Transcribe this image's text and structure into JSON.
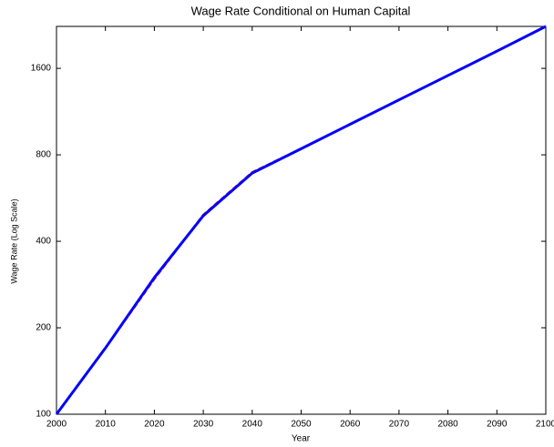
{
  "chart_data": {
    "type": "line",
    "title": "Wage Rate Conditional on Human Capital",
    "x_label": "Year",
    "y_label": "Wage Rate (Log Scale)",
    "x": [
      2000,
      2010,
      2020,
      2030,
      2040,
      2050,
      2060,
      2070,
      2080,
      2090,
      2100
    ],
    "series": [
      {
        "color": "#ff0000",
        "dashed": true,
        "values": [
          100,
          170,
          296,
          494,
          695,
          840,
          1022,
          1243,
          1511,
          1837,
          2240
        ]
      },
      {
        "color": "#0000ff",
        "dashed": false,
        "values": [
          100,
          170,
          299,
          491,
          691,
          840,
          1022,
          1243,
          1511,
          1837,
          2240
        ]
      }
    ],
    "xlim": [
      2000,
      2100
    ],
    "xticks": [
      2000,
      2010,
      2020,
      2030,
      2040,
      2050,
      2060,
      2070,
      2080,
      2090,
      2100
    ],
    "ylim": [
      100,
      2240
    ],
    "yticks": [
      100,
      200,
      400,
      800,
      1600
    ],
    "yscale": "log"
  }
}
